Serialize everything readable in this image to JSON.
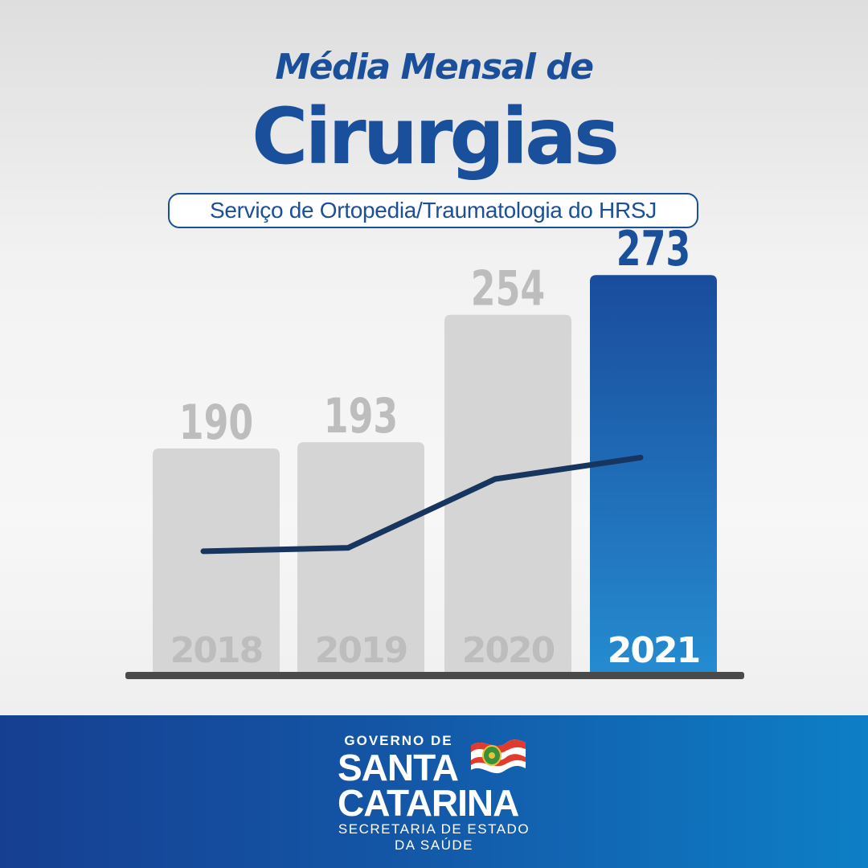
{
  "header": {
    "title_line1": "Média Mensal de",
    "title_line2": "Cirurgias",
    "subtitle": "Serviço de Ortopedia/Traumatologia do HRSJ"
  },
  "chart_data": {
    "type": "bar",
    "categories": [
      "2018",
      "2019",
      "2020",
      "2021"
    ],
    "values": [
      190,
      193,
      254,
      273
    ],
    "highlight_index": 3,
    "trend_line": true,
    "grid": false,
    "colors": {
      "bar": "#d5d5d5",
      "bar_label": "#bdbdbd",
      "category_label": "#bdbdbd",
      "highlight_top": "#1a4c9c",
      "highlight_bottom": "#258bd0",
      "highlight_value": "#1a4f9c",
      "highlight_category": "#ffffff",
      "trend_line": "#17355e",
      "baseline": "#4a4a4a"
    }
  },
  "footer": {
    "government": "GOVERNO DE",
    "state_line1": "SANTA",
    "state_line2": "CATARINA",
    "secretariat_line1": "SECRETARIA DE ESTADO",
    "secretariat_line2": "DA SAÚDE",
    "logo_icon": "santa-catarina-flag-icon",
    "colors": {
      "gradient_start": "#163f91",
      "gradient_end": "#0d7fc6"
    }
  }
}
